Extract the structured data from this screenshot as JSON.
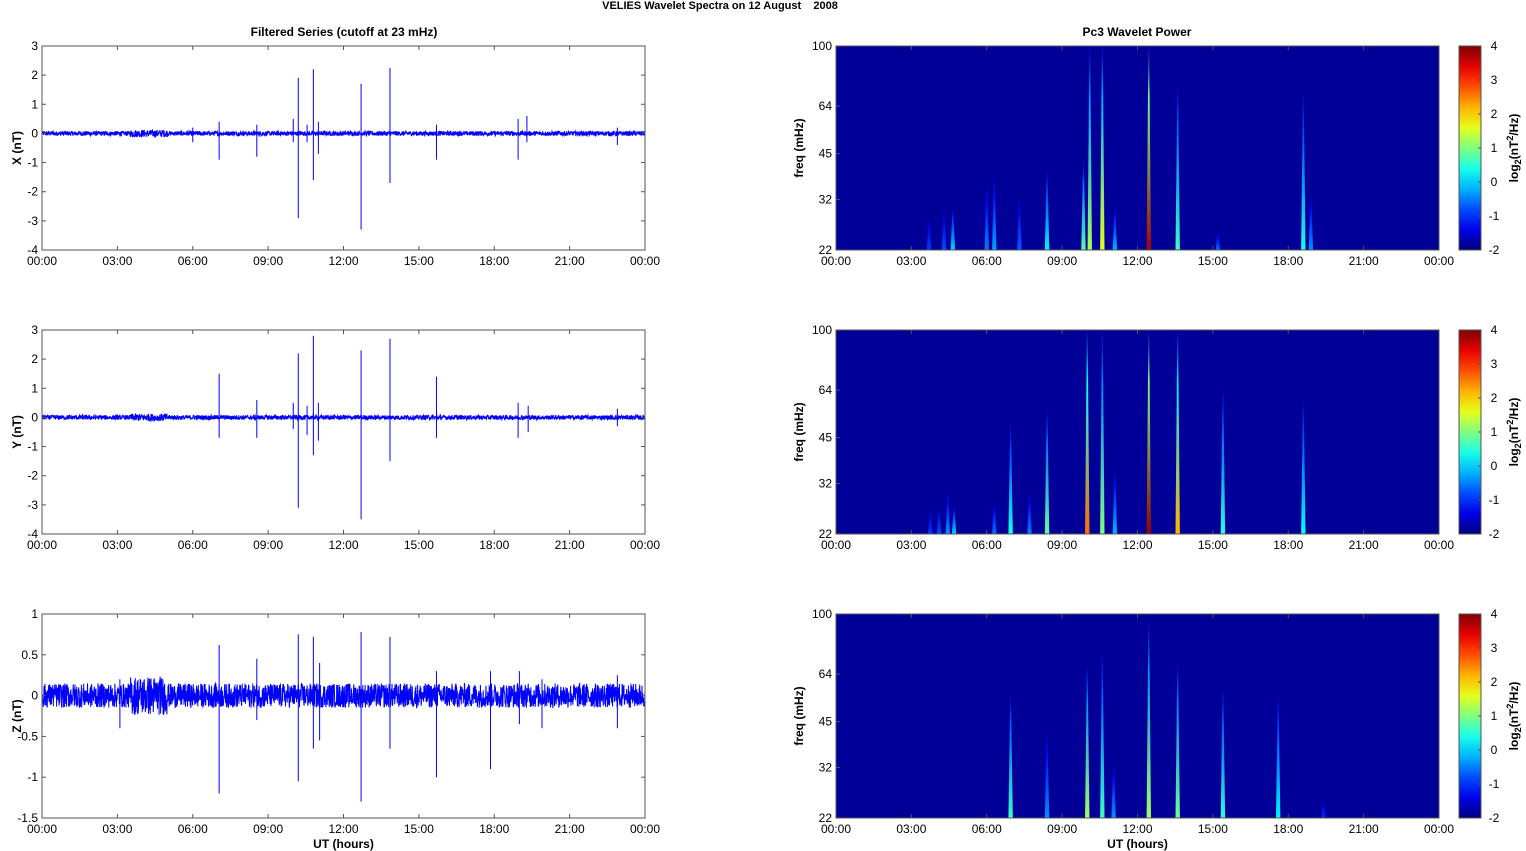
{
  "title": {
    "main": "VELIES Wavelet Spectra on 12 August    2008",
    "left_header": "Filtered Series (cutoff at 23 mHz)",
    "right_header": "Pc3 Wavelet Power"
  },
  "colors": {
    "series": "#0000ff",
    "spectrogram_bg": "#00008f",
    "axis": "#555555"
  },
  "colorbar": {
    "label_prefix": "log",
    "label_sub": "2",
    "label_paren": "(nT",
    "label_sup": "2",
    "label_suffix": "/Hz)",
    "ticks": [
      "4",
      "3",
      "2",
      "1",
      "0",
      "-1",
      "-2"
    ],
    "range": [
      -2,
      4
    ],
    "colormap": "jet"
  },
  "x_axis": {
    "tick_labels": [
      "00:00",
      "03:00",
      "06:00",
      "09:00",
      "12:00",
      "15:00",
      "18:00",
      "21:00",
      "00:00"
    ],
    "xlabel": "UT (hours)",
    "range_hours": [
      0,
      24
    ]
  },
  "chart_data": [
    {
      "type": "line",
      "id": "x-series",
      "ylabel": "X (nT)",
      "ylim": [
        -4,
        3
      ],
      "yticks": [
        "3",
        "2",
        "1",
        "0",
        "-1",
        "-2",
        "-3",
        "-4"
      ],
      "baseline_amplitude": 0.08,
      "spikes": [
        {
          "t": 6.0,
          "hi": 0.2,
          "lo": -0.3
        },
        {
          "t": 7.05,
          "hi": 0.4,
          "lo": -0.9
        },
        {
          "t": 8.55,
          "hi": 0.3,
          "lo": -0.8
        },
        {
          "t": 10.0,
          "hi": 0.5,
          "lo": -0.3
        },
        {
          "t": 10.2,
          "hi": 1.9,
          "lo": -2.9
        },
        {
          "t": 10.55,
          "hi": 0.3,
          "lo": -0.3
        },
        {
          "t": 10.8,
          "hi": 2.2,
          "lo": -1.6
        },
        {
          "t": 11.0,
          "hi": 0.4,
          "lo": -0.7
        },
        {
          "t": 12.7,
          "hi": 1.7,
          "lo": -3.3
        },
        {
          "t": 13.85,
          "hi": 2.25,
          "lo": -1.7
        },
        {
          "t": 15.7,
          "hi": 0.3,
          "lo": -0.9
        },
        {
          "t": 18.95,
          "hi": 0.5,
          "lo": -0.9
        },
        {
          "t": 19.3,
          "hi": 0.6,
          "lo": -0.3
        },
        {
          "t": 22.9,
          "hi": 0.2,
          "lo": -0.4
        }
      ]
    },
    {
      "type": "line",
      "id": "y-series",
      "ylabel": "Y (nT)",
      "ylim": [
        -4,
        3
      ],
      "yticks": [
        "3",
        "2",
        "1",
        "0",
        "-1",
        "-2",
        "-3",
        "-4"
      ],
      "baseline_amplitude": 0.08,
      "spikes": [
        {
          "t": 7.05,
          "hi": 1.5,
          "lo": -0.7
        },
        {
          "t": 8.55,
          "hi": 0.6,
          "lo": -0.7
        },
        {
          "t": 10.0,
          "hi": 0.5,
          "lo": -0.4
        },
        {
          "t": 10.2,
          "hi": 2.2,
          "lo": -3.1
        },
        {
          "t": 10.55,
          "hi": 0.4,
          "lo": -0.6
        },
        {
          "t": 10.8,
          "hi": 2.8,
          "lo": -1.3
        },
        {
          "t": 11.0,
          "hi": 0.5,
          "lo": -0.8
        },
        {
          "t": 12.7,
          "hi": 2.3,
          "lo": -3.5
        },
        {
          "t": 13.85,
          "hi": 2.7,
          "lo": -1.5
        },
        {
          "t": 15.7,
          "hi": 1.4,
          "lo": -0.7
        },
        {
          "t": 18.95,
          "hi": 0.5,
          "lo": -0.7
        },
        {
          "t": 19.35,
          "hi": 0.4,
          "lo": -0.5
        },
        {
          "t": 22.9,
          "hi": 0.3,
          "lo": -0.3
        }
      ]
    },
    {
      "type": "line",
      "id": "z-series",
      "ylabel": "Z (nT)",
      "ylim": [
        -1.5,
        1
      ],
      "yticks": [
        "1",
        "0.5",
        "0",
        "-0.5",
        "-1",
        "-1.5"
      ],
      "baseline_amplitude": 0.15,
      "spikes": [
        {
          "t": 3.1,
          "hi": 0.2,
          "lo": -0.4
        },
        {
          "t": 7.05,
          "hi": 0.62,
          "lo": -1.2
        },
        {
          "t": 8.55,
          "hi": 0.45,
          "lo": -0.3
        },
        {
          "t": 10.2,
          "hi": 0.75,
          "lo": -1.05
        },
        {
          "t": 10.8,
          "hi": 0.72,
          "lo": -0.65
        },
        {
          "t": 11.05,
          "hi": 0.4,
          "lo": -0.55
        },
        {
          "t": 12.7,
          "hi": 0.78,
          "lo": -1.3
        },
        {
          "t": 13.85,
          "hi": 0.72,
          "lo": -0.65
        },
        {
          "t": 15.7,
          "hi": 0.3,
          "lo": -1.0
        },
        {
          "t": 17.85,
          "hi": 0.3,
          "lo": -0.9
        },
        {
          "t": 19.0,
          "hi": 0.3,
          "lo": -0.35
        },
        {
          "t": 19.9,
          "hi": 0.2,
          "lo": -0.4
        },
        {
          "t": 22.9,
          "hi": 0.25,
          "lo": -0.4
        }
      ]
    },
    {
      "type": "heatmap",
      "id": "x-spectrogram",
      "ylabel": "freq (mHz)",
      "ylim": [
        22,
        100
      ],
      "yscale": "log",
      "yticks": [
        "100",
        "64",
        "45",
        "32",
        "22"
      ],
      "ytick_values": [
        100,
        64,
        45,
        32,
        22
      ],
      "background_value": -2,
      "bursts": [
        {
          "t": 3.7,
          "fmax": 28,
          "v": -0.9
        },
        {
          "t": 4.3,
          "fmax": 30,
          "v": -0.8
        },
        {
          "t": 4.65,
          "fmax": 30,
          "v": 0
        },
        {
          "t": 6.0,
          "fmax": 36,
          "v": -0.5
        },
        {
          "t": 6.3,
          "fmax": 38,
          "v": -0.3
        },
        {
          "t": 7.3,
          "fmax": 33,
          "v": -0.7
        },
        {
          "t": 8.4,
          "fmax": 40,
          "v": 0.2
        },
        {
          "t": 9.85,
          "fmax": 42,
          "v": 0.8
        },
        {
          "t": 10.1,
          "fmax": 100,
          "v": 1.2
        },
        {
          "t": 10.6,
          "fmax": 100,
          "v": 1.6
        },
        {
          "t": 11.1,
          "fmax": 30,
          "v": -0.2
        },
        {
          "t": 12.45,
          "fmax": 100,
          "v": 3.8
        },
        {
          "t": 13.6,
          "fmax": 75,
          "v": 0.6
        },
        {
          "t": 15.2,
          "fmax": 25,
          "v": -0.6
        },
        {
          "t": 18.6,
          "fmax": 70,
          "v": 0.4
        },
        {
          "t": 18.9,
          "fmax": 33,
          "v": -0.4
        }
      ]
    },
    {
      "type": "heatmap",
      "id": "y-spectrogram",
      "ylabel": "freq (mHz)",
      "ylim": [
        22,
        100
      ],
      "yscale": "log",
      "yticks": [
        "100",
        "64",
        "45",
        "32",
        "22"
      ],
      "ytick_values": [
        100,
        64,
        45,
        32,
        22
      ],
      "background_value": -2,
      "bursts": [
        {
          "t": 3.75,
          "fmax": 26,
          "v": -0.9
        },
        {
          "t": 4.1,
          "fmax": 27,
          "v": -0.8
        },
        {
          "t": 4.45,
          "fmax": 30,
          "v": -0.4
        },
        {
          "t": 4.7,
          "fmax": 27,
          "v": 0
        },
        {
          "t": 6.3,
          "fmax": 28,
          "v": -0.6
        },
        {
          "t": 6.95,
          "fmax": 50,
          "v": 0.4
        },
        {
          "t": 7.7,
          "fmax": 30,
          "v": -0.5
        },
        {
          "t": 8.4,
          "fmax": 55,
          "v": 0.8
        },
        {
          "t": 10.0,
          "fmax": 100,
          "v": 2.6
        },
        {
          "t": 10.6,
          "fmax": 100,
          "v": 1.0
        },
        {
          "t": 11.1,
          "fmax": 35,
          "v": -0.2
        },
        {
          "t": 12.45,
          "fmax": 100,
          "v": 3.9
        },
        {
          "t": 13.6,
          "fmax": 100,
          "v": 2.2
        },
        {
          "t": 15.4,
          "fmax": 65,
          "v": 0.5
        },
        {
          "t": 18.6,
          "fmax": 60,
          "v": 0.3
        }
      ]
    },
    {
      "type": "heatmap",
      "id": "z-spectrogram",
      "ylabel": "freq (mHz)",
      "ylim": [
        22,
        100
      ],
      "yscale": "log",
      "yticks": [
        "100",
        "64",
        "45",
        "32",
        "22"
      ],
      "ytick_values": [
        100,
        64,
        45,
        32,
        22
      ],
      "background_value": -2,
      "bursts": [
        {
          "t": 6.95,
          "fmax": 55,
          "v": 0.6
        },
        {
          "t": 8.4,
          "fmax": 42,
          "v": -0.4
        },
        {
          "t": 10.0,
          "fmax": 68,
          "v": 1.2
        },
        {
          "t": 10.6,
          "fmax": 75,
          "v": 0.6
        },
        {
          "t": 11.05,
          "fmax": 33,
          "v": -0.4
        },
        {
          "t": 12.45,
          "fmax": 95,
          "v": 1.2
        },
        {
          "t": 13.6,
          "fmax": 70,
          "v": 0.9
        },
        {
          "t": 15.4,
          "fmax": 58,
          "v": 0.5
        },
        {
          "t": 17.6,
          "fmax": 55,
          "v": 0.2
        },
        {
          "t": 19.4,
          "fmax": 25,
          "v": -1.0
        }
      ]
    }
  ]
}
